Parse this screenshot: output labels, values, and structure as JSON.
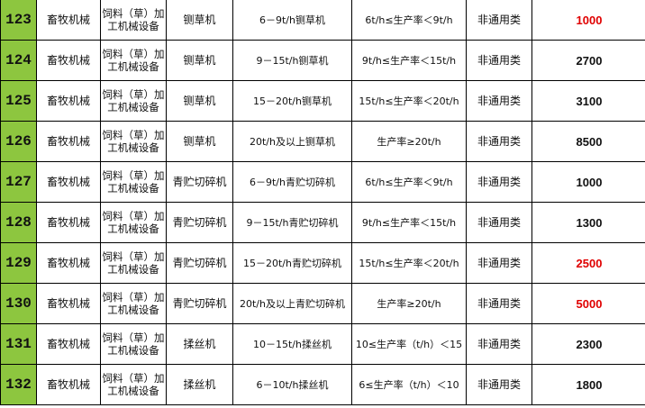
{
  "colors": {
    "index_bg": "#8dc63f",
    "highlight_value": "#e00000"
  },
  "rows": [
    {
      "no": "123",
      "category": "畜牧机械",
      "group": "饲料（草）加工机械设备",
      "item": "铡草机",
      "spec": "6－9t/h铡草机",
      "range": "6t/h≤生产率＜9t/h",
      "type": "非通用类",
      "amount": "1000",
      "red": true
    },
    {
      "no": "124",
      "category": "畜牧机械",
      "group": "饲料（草）加工机械设备",
      "item": "铡草机",
      "spec": "9－15t/h铡草机",
      "range": "9t/h≤生产率＜15t/h",
      "type": "非通用类",
      "amount": "2700",
      "red": false
    },
    {
      "no": "125",
      "category": "畜牧机械",
      "group": "饲料（草）加工机械设备",
      "item": "铡草机",
      "spec": "15－20t/h铡草机",
      "range": "15t/h≤生产率＜20t/h",
      "type": "非通用类",
      "amount": "3100",
      "red": false
    },
    {
      "no": "126",
      "category": "畜牧机械",
      "group": "饲料（草）加工机械设备",
      "item": "铡草机",
      "spec": "20t/h及以上铡草机",
      "range": "生产率≥20t/h",
      "type": "非通用类",
      "amount": "8500",
      "red": false
    },
    {
      "no": "127",
      "category": "畜牧机械",
      "group": "饲料（草）加工机械设备",
      "item": "青贮切碎机",
      "spec": "6－9t/h青贮切碎机",
      "range": "6t/h≤生产率＜9t/h",
      "type": "非通用类",
      "amount": "1000",
      "red": false
    },
    {
      "no": "128",
      "category": "畜牧机械",
      "group": "饲料（草）加工机械设备",
      "item": "青贮切碎机",
      "spec": "9－15t/h青贮切碎机",
      "range": "9t/h≤生产率＜15t/h",
      "type": "非通用类",
      "amount": "1300",
      "red": false
    },
    {
      "no": "129",
      "category": "畜牧机械",
      "group": "饲料（草）加工机械设备",
      "item": "青贮切碎机",
      "spec": "15－20t/h青贮切碎机",
      "range": "15t/h≤生产率＜20t/h",
      "type": "非通用类",
      "amount": "2500",
      "red": true
    },
    {
      "no": "130",
      "category": "畜牧机械",
      "group": "饲料（草）加工机械设备",
      "item": "青贮切碎机",
      "spec": "20t/h及以上青贮切碎机",
      "range": "生产率≥20t/h",
      "type": "非通用类",
      "amount": "5000",
      "red": true
    },
    {
      "no": "131",
      "category": "畜牧机械",
      "group": "饲料（草）加工机械设备",
      "item": "揉丝机",
      "spec": "10－15t/h揉丝机",
      "range": "10≤生产率（t/h）＜15",
      "type": "非通用类",
      "amount": "2300",
      "red": false
    },
    {
      "no": "132",
      "category": "畜牧机械",
      "group": "饲料（草）加工机械设备",
      "item": "揉丝机",
      "spec": "6－10t/h揉丝机",
      "range": "6≤生产率（t/h）＜10",
      "type": "非通用类",
      "amount": "1800",
      "red": false
    }
  ]
}
